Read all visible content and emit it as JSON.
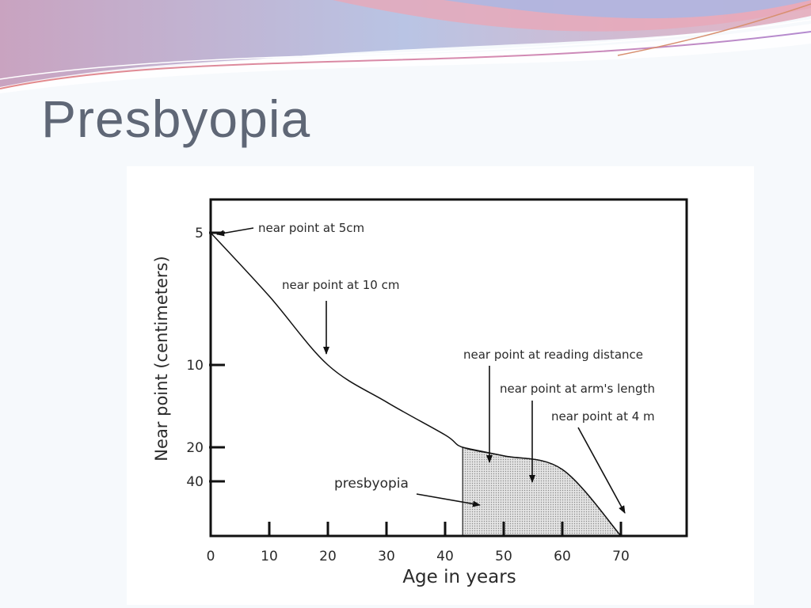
{
  "slide": {
    "title": "Presbyopia"
  },
  "colors": {
    "title": "#5f6776",
    "banner_pink": "#d98aa6",
    "banner_blue": "#8fa9d6",
    "shade": "#cfcfcf",
    "line": "#111111"
  },
  "chart_data": {
    "type": "line",
    "xlabel": "Age in years",
    "ylabel": "Near point (centimeters)",
    "x_ticks": [
      0,
      10,
      20,
      30,
      40,
      50,
      60,
      70
    ],
    "y_ticks": [
      "5",
      "10",
      "20",
      "40"
    ],
    "xlim": [
      0,
      80
    ],
    "series": [
      {
        "x": [
          0,
          10,
          20,
          30,
          40,
          43,
          50,
          60,
          70
        ],
        "y_ticks_units": [
          5,
          7.4,
          10,
          14.5,
          18.5,
          20,
          25,
          33,
          60
        ]
      }
    ],
    "shaded_region": {
      "label": "presbyopia",
      "x_start": 43,
      "x_end": 70
    },
    "annotations": [
      {
        "text": "near point at 5cm"
      },
      {
        "text": "near point at  10 cm"
      },
      {
        "text": "near point at reading distance"
      },
      {
        "text": "near point at arm's length"
      },
      {
        "text": "near point at 4 m"
      },
      {
        "text": "presbyopia"
      }
    ]
  }
}
